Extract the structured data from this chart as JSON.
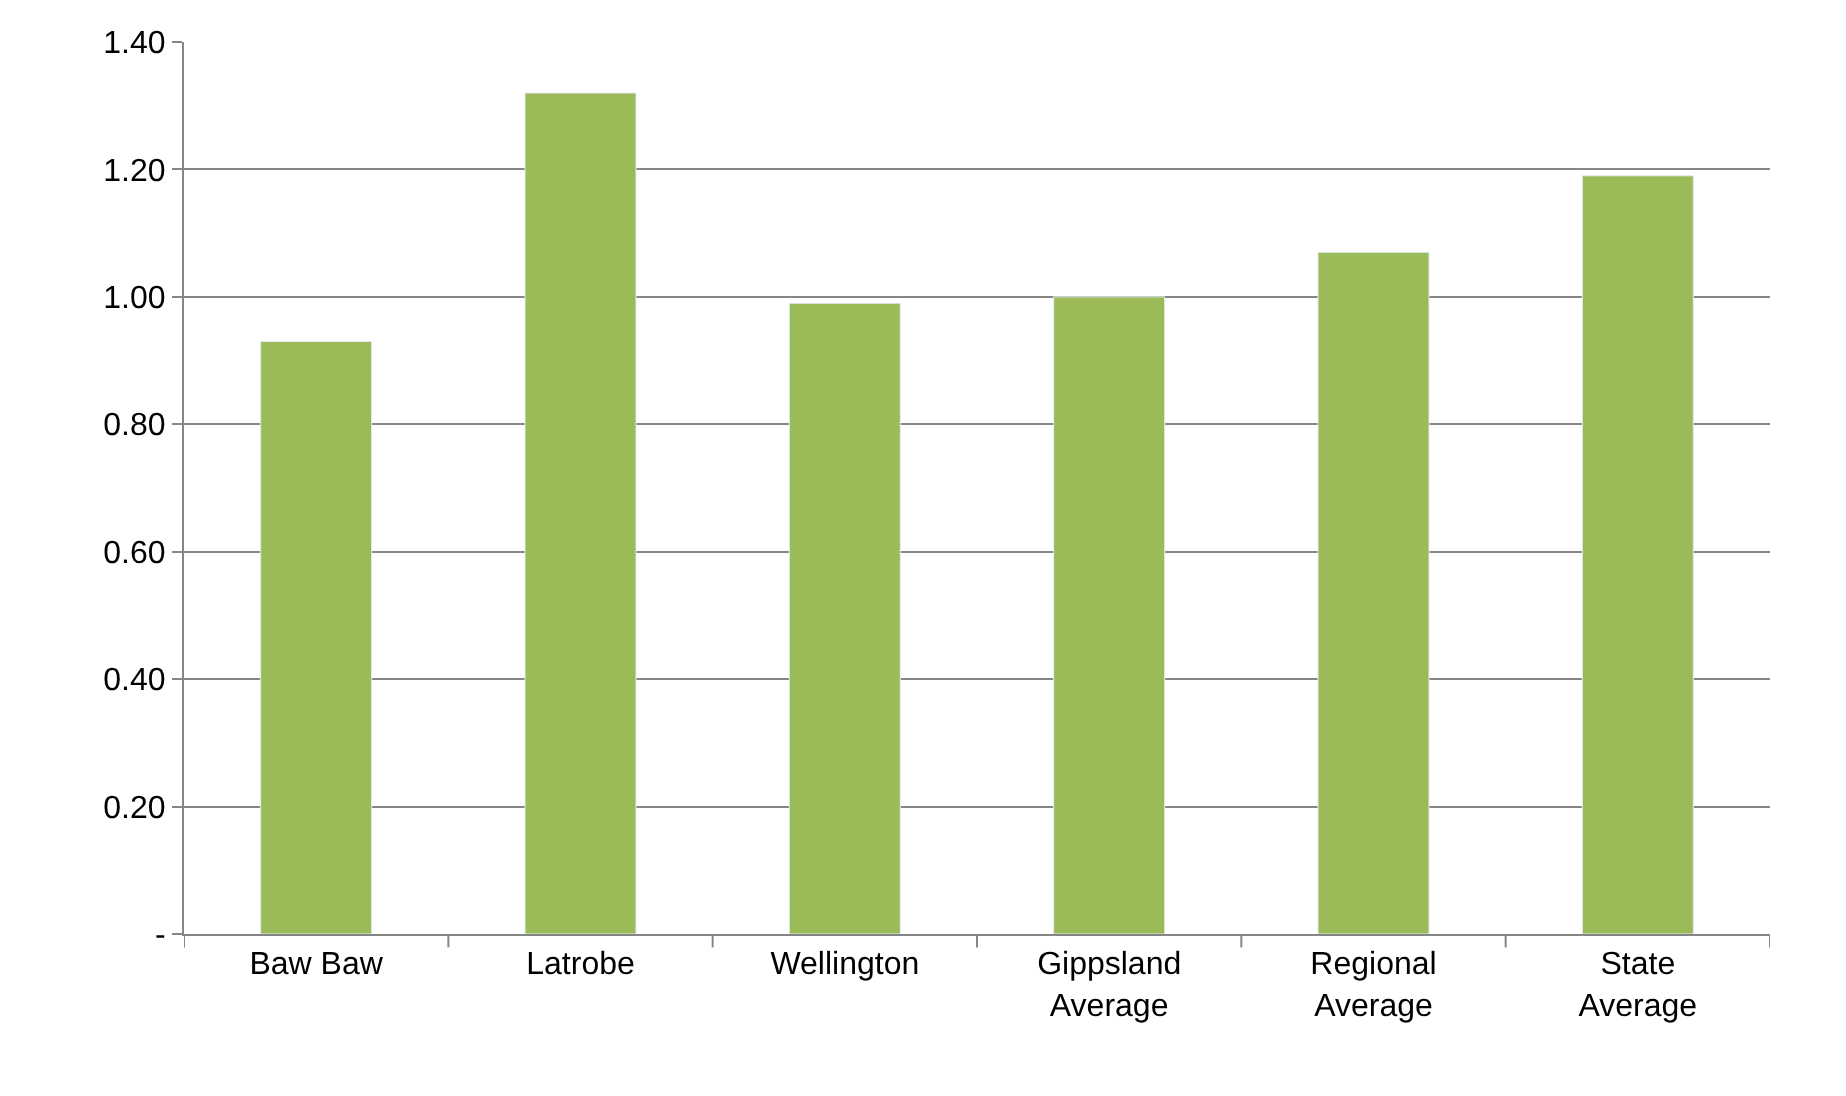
{
  "chart_data": {
    "type": "bar",
    "categories": [
      "Baw Baw",
      "Latrobe",
      "Wellington",
      "Gippsland Average",
      "Regional Average",
      "State Average"
    ],
    "values": [
      0.93,
      1.32,
      0.99,
      1.0,
      1.07,
      1.19
    ],
    "color": "#9bbb59",
    "ylim": [
      0,
      1.4
    ],
    "yticks": [
      {
        "value": 0,
        "label": "-"
      },
      {
        "value": 0.2,
        "label": "0.20"
      },
      {
        "value": 0.4,
        "label": "0.40"
      },
      {
        "value": 0.6,
        "label": "0.60"
      },
      {
        "value": 0.8,
        "label": "0.80"
      },
      {
        "value": 1.0,
        "label": "1.00"
      },
      {
        "value": 1.2,
        "label": "1.20"
      },
      {
        "value": 1.4,
        "label": "1.40"
      }
    ],
    "grid": "y"
  }
}
